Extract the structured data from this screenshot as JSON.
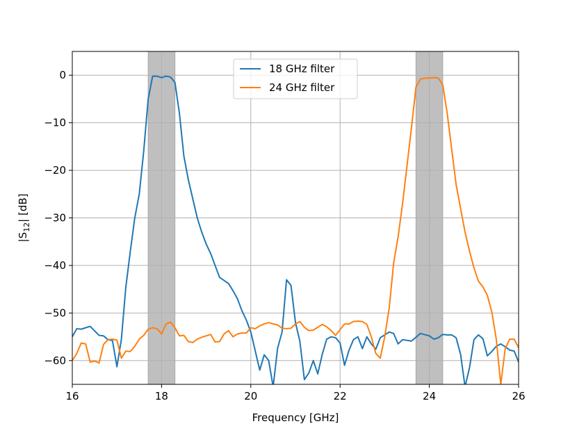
{
  "chart_data": {
    "type": "line",
    "title": "",
    "xlabel": "Frequency [GHz]",
    "ylabel_parts": {
      "pre": "|S",
      "sub": "12",
      "post": "| [dB]"
    },
    "xlim": [
      16,
      26
    ],
    "ylim": [
      -65,
      5
    ],
    "xticks": [
      16,
      18,
      20,
      22,
      24,
      26
    ],
    "yticks": [
      0,
      -10,
      -20,
      -30,
      -40,
      -50,
      -60
    ],
    "x_tick_labels": [
      "16",
      "18",
      "20",
      "22",
      "24",
      "26"
    ],
    "y_tick_labels": [
      "0",
      "−10",
      "−20",
      "−30",
      "−40",
      "−50",
      "−60"
    ],
    "grid": true,
    "legend_position": "top-center",
    "shaded_bands": [
      {
        "x0": 17.7,
        "x1": 18.3,
        "color": "#bfbfbf"
      },
      {
        "x0": 23.7,
        "x1": 24.3,
        "color": "#bfbfbf"
      }
    ],
    "series": [
      {
        "name": "18 GHz filter",
        "color": "#1f77b4",
        "points": [
          [
            16.0,
            -55.0
          ],
          [
            16.1,
            -53.3
          ],
          [
            16.2,
            -53.4
          ],
          [
            16.4,
            -52.8
          ],
          [
            16.6,
            -54.7
          ],
          [
            16.7,
            -54.8
          ],
          [
            16.8,
            -55.6
          ],
          [
            16.9,
            -55.8
          ],
          [
            17.0,
            -61.3
          ],
          [
            17.1,
            -55.5
          ],
          [
            17.2,
            -44.5
          ],
          [
            17.3,
            -37.0
          ],
          [
            17.4,
            -30.0
          ],
          [
            17.5,
            -25.0
          ],
          [
            17.6,
            -16.0
          ],
          [
            17.7,
            -5.0
          ],
          [
            17.8,
            -0.2
          ],
          [
            17.9,
            -0.2
          ],
          [
            18.0,
            -0.5
          ],
          [
            18.1,
            -0.2
          ],
          [
            18.2,
            -0.4
          ],
          [
            18.3,
            -1.5
          ],
          [
            18.4,
            -8.0
          ],
          [
            18.5,
            -17.0
          ],
          [
            18.6,
            -22.0
          ],
          [
            18.7,
            -26.0
          ],
          [
            18.8,
            -30.0
          ],
          [
            18.9,
            -33.0
          ],
          [
            19.0,
            -35.5
          ],
          [
            19.1,
            -37.5
          ],
          [
            19.2,
            -40.0
          ],
          [
            19.3,
            -42.5
          ],
          [
            19.5,
            -43.8
          ],
          [
            19.6,
            -45.3
          ],
          [
            19.7,
            -47.0
          ],
          [
            19.8,
            -49.5
          ],
          [
            19.9,
            -51.5
          ],
          [
            20.0,
            -54.0
          ],
          [
            20.1,
            -58.0
          ],
          [
            20.2,
            -62.0
          ],
          [
            20.3,
            -58.8
          ],
          [
            20.4,
            -60.0
          ],
          [
            20.5,
            -65.5
          ],
          [
            20.6,
            -57.4
          ],
          [
            20.7,
            -54.0
          ],
          [
            20.8,
            -43.0
          ],
          [
            20.9,
            -44.2
          ],
          [
            21.0,
            -52.0
          ],
          [
            21.1,
            -56.0
          ],
          [
            21.2,
            -64.0
          ],
          [
            21.3,
            -62.6
          ],
          [
            21.4,
            -60.0
          ],
          [
            21.5,
            -62.8
          ],
          [
            21.6,
            -58.7
          ],
          [
            21.7,
            -55.5
          ],
          [
            21.8,
            -55.0
          ],
          [
            21.9,
            -55.2
          ],
          [
            22.0,
            -56.3
          ],
          [
            22.1,
            -61.0
          ],
          [
            22.2,
            -57.8
          ],
          [
            22.3,
            -55.6
          ],
          [
            22.4,
            -55.0
          ],
          [
            22.5,
            -57.5
          ],
          [
            22.6,
            -55.0
          ],
          [
            22.7,
            -56.5
          ],
          [
            22.8,
            -57.6
          ],
          [
            22.9,
            -55.2
          ],
          [
            23.0,
            -54.6
          ],
          [
            23.1,
            -54.0
          ],
          [
            23.2,
            -54.3
          ],
          [
            23.3,
            -56.5
          ],
          [
            23.4,
            -55.6
          ],
          [
            23.6,
            -55.9
          ],
          [
            23.8,
            -54.3
          ],
          [
            24.0,
            -54.8
          ],
          [
            24.1,
            -55.5
          ],
          [
            24.2,
            -55.2
          ],
          [
            24.3,
            -54.5
          ],
          [
            24.4,
            -54.6
          ],
          [
            24.5,
            -54.6
          ],
          [
            24.6,
            -55.2
          ],
          [
            24.7,
            -58.7
          ],
          [
            24.8,
            -65.5
          ],
          [
            24.9,
            -61.5
          ],
          [
            25.0,
            -55.6
          ],
          [
            25.1,
            -54.6
          ],
          [
            25.2,
            -55.4
          ],
          [
            25.3,
            -59.0
          ],
          [
            25.4,
            -58.1
          ],
          [
            25.5,
            -57.0
          ],
          [
            25.6,
            -56.5
          ],
          [
            25.7,
            -57.1
          ],
          [
            25.8,
            -57.8
          ],
          [
            25.9,
            -58.0
          ],
          [
            26.0,
            -60.3
          ]
        ]
      },
      {
        "name": "24 GHz filter",
        "color": "#ff7f0e",
        "points": [
          [
            16.0,
            -60.0
          ],
          [
            16.1,
            -58.5
          ],
          [
            16.2,
            -56.3
          ],
          [
            16.3,
            -56.5
          ],
          [
            16.4,
            -60.3
          ],
          [
            16.5,
            -60.1
          ],
          [
            16.6,
            -60.5
          ],
          [
            16.7,
            -56.6
          ],
          [
            16.8,
            -55.6
          ],
          [
            16.9,
            -55.5
          ],
          [
            17.0,
            -55.7
          ],
          [
            17.1,
            -59.5
          ],
          [
            17.2,
            -58.0
          ],
          [
            17.3,
            -58.1
          ],
          [
            17.4,
            -57.0
          ],
          [
            17.5,
            -55.5
          ],
          [
            17.6,
            -54.7
          ],
          [
            17.7,
            -53.4
          ],
          [
            17.8,
            -53.1
          ],
          [
            17.9,
            -53.3
          ],
          [
            18.0,
            -54.4
          ],
          [
            18.1,
            -52.3
          ],
          [
            18.2,
            -51.9
          ],
          [
            18.3,
            -53.1
          ],
          [
            18.4,
            -54.8
          ],
          [
            18.5,
            -54.7
          ],
          [
            18.6,
            -56.0
          ],
          [
            18.7,
            -56.2
          ],
          [
            18.8,
            -55.5
          ],
          [
            18.9,
            -55.1
          ],
          [
            19.0,
            -54.8
          ],
          [
            19.1,
            -54.5
          ],
          [
            19.2,
            -56.1
          ],
          [
            19.3,
            -56.0
          ],
          [
            19.4,
            -54.4
          ],
          [
            19.5,
            -53.7
          ],
          [
            19.6,
            -55.0
          ],
          [
            19.7,
            -54.4
          ],
          [
            19.8,
            -54.2
          ],
          [
            19.9,
            -54.2
          ],
          [
            20.0,
            -53.1
          ],
          [
            20.1,
            -53.3
          ],
          [
            20.2,
            -52.7
          ],
          [
            20.3,
            -52.3
          ],
          [
            20.4,
            -52.0
          ],
          [
            20.5,
            -52.3
          ],
          [
            20.6,
            -52.5
          ],
          [
            20.7,
            -53.2
          ],
          [
            20.8,
            -53.3
          ],
          [
            20.9,
            -53.2
          ],
          [
            21.0,
            -52.3
          ],
          [
            21.1,
            -51.8
          ],
          [
            21.2,
            -53.0
          ],
          [
            21.3,
            -53.7
          ],
          [
            21.4,
            -53.6
          ],
          [
            21.5,
            -53.0
          ],
          [
            21.6,
            -52.4
          ],
          [
            21.7,
            -52.9
          ],
          [
            21.8,
            -53.7
          ],
          [
            21.9,
            -54.7
          ],
          [
            22.0,
            -53.5
          ],
          [
            22.1,
            -52.3
          ],
          [
            22.2,
            -52.3
          ],
          [
            22.3,
            -51.8
          ],
          [
            22.4,
            -51.7
          ],
          [
            22.5,
            -51.8
          ],
          [
            22.6,
            -52.4
          ],
          [
            22.7,
            -55.0
          ],
          [
            22.8,
            -58.5
          ],
          [
            22.9,
            -59.5
          ],
          [
            23.0,
            -55.0
          ],
          [
            23.1,
            -49.0
          ],
          [
            23.2,
            -39.5
          ],
          [
            23.3,
            -34.0
          ],
          [
            23.4,
            -27.0
          ],
          [
            23.5,
            -19.0
          ],
          [
            23.6,
            -11.0
          ],
          [
            23.7,
            -2.5
          ],
          [
            23.8,
            -0.8
          ],
          [
            23.9,
            -0.6
          ],
          [
            24.0,
            -0.6
          ],
          [
            24.1,
            -0.5
          ],
          [
            24.2,
            -0.6
          ],
          [
            24.3,
            -2.0
          ],
          [
            24.4,
            -8.0
          ],
          [
            24.5,
            -15.5
          ],
          [
            24.6,
            -23.0
          ],
          [
            24.7,
            -28.0
          ],
          [
            24.8,
            -33.0
          ],
          [
            24.9,
            -37.0
          ],
          [
            25.0,
            -40.5
          ],
          [
            25.1,
            -43.3
          ],
          [
            25.2,
            -44.5
          ],
          [
            25.3,
            -46.3
          ],
          [
            25.4,
            -49.8
          ],
          [
            25.5,
            -55.5
          ],
          [
            25.6,
            -65.0
          ],
          [
            25.7,
            -57.5
          ],
          [
            25.8,
            -55.5
          ],
          [
            25.9,
            -55.5
          ],
          [
            26.0,
            -57.3
          ]
        ]
      }
    ]
  }
}
